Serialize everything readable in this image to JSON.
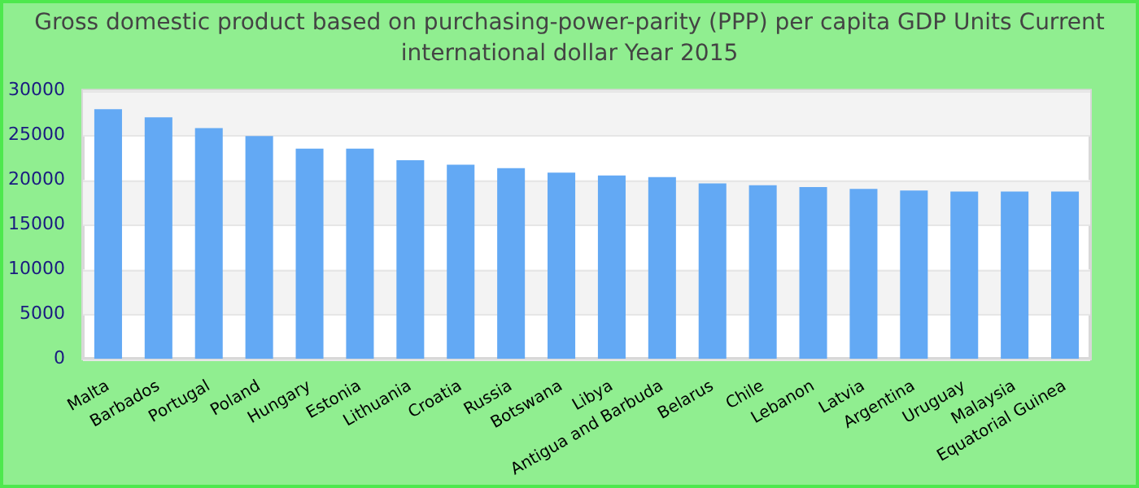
{
  "chart_data": {
    "type": "bar",
    "title": "Gross domestic product based on purchasing-power-parity (PPP) per capita GDP Units Current international dollar Year 2015",
    "categories": [
      "Malta",
      "Barbados",
      "Portugal",
      "Poland",
      "Hungary",
      "Estonia",
      "Lithuania",
      "Croatia",
      "Russia",
      "Botswana",
      "Libya",
      "Antigua and Barbuda",
      "Belarus",
      "Chile",
      "Lebanon",
      "Latvia",
      "Argentina",
      "Uruguay",
      "Malaysia",
      "Equatorial Guinea"
    ],
    "values": [
      27900,
      27000,
      25800,
      24900,
      23500,
      23500,
      22200,
      21700,
      21300,
      20800,
      20500,
      20300,
      19600,
      19400,
      19200,
      19000,
      18800,
      18700,
      18700,
      18700
    ],
    "color": "#63a9f4",
    "ylim": [
      0,
      30000
    ],
    "yticks": [
      0,
      5000,
      10000,
      15000,
      20000,
      25000,
      30000
    ],
    "grid": "y"
  }
}
